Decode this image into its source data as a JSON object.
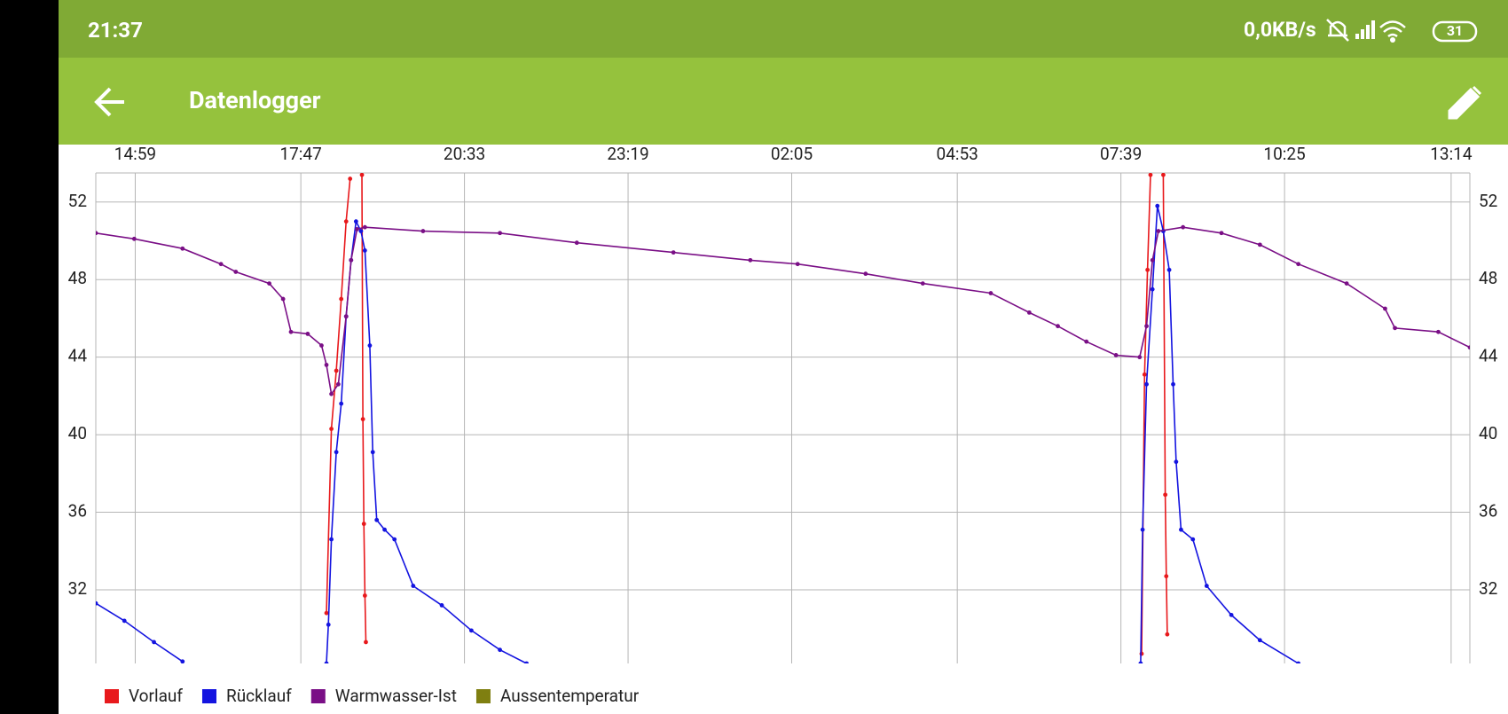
{
  "status_bar": {
    "time": "21:37",
    "network": "0,0KB/s",
    "battery": "31"
  },
  "app_bar": {
    "title": "Datenlogger"
  },
  "chart_data": {
    "type": "line",
    "xlim": [
      "14:19",
      "13:33"
    ],
    "xticks": [
      "14:59",
      "17:47",
      "20:33",
      "23:19",
      "02:05",
      "04:53",
      "07:39",
      "10:25",
      "13:14"
    ],
    "ylim": [
      28.2,
      53.5
    ],
    "yticks": [
      32,
      36,
      40,
      44,
      48,
      52
    ],
    "grid": true,
    "legend": "bottom-left",
    "series": [
      {
        "name": "Vorlauf",
        "color": "#e8191c",
        "x": [
          "18:13",
          "18:18",
          "18:23",
          "18:28",
          "18:33",
          "18:37",
          "18:45",
          "18:49",
          "18:50",
          "18:51",
          "18:52",
          "18:53",
          "12:00",
          "08:00",
          "08:03",
          "08:06",
          "08:09",
          "08:15",
          "08:22",
          "08:24",
          "08:25",
          "08:26"
        ],
        "values": [
          30.8,
          40.3,
          43.3,
          47.0,
          51.0,
          53.2,
          null,
          53.4,
          40.8,
          35.4,
          31.7,
          29.3,
          null,
          28.7,
          43.1,
          48.5,
          53.4,
          null,
          53.4,
          36.9,
          32.7,
          29.7
        ]
      },
      {
        "name": "Rücklauf",
        "color": "#1414e0",
        "x": [
          "14:19",
          "14:48",
          "15:18",
          "15:47",
          "16:00",
          "18:13",
          "18:15",
          "18:18",
          "18:23",
          "18:28",
          "18:33",
          "18:38",
          "18:43",
          "18:48",
          "18:52",
          "18:57",
          "19:00",
          "19:04",
          "19:12",
          "19:22",
          "19:41",
          "20:10",
          "20:40",
          "21:09",
          "21:36",
          "00:00",
          "07:59",
          "08:01",
          "08:05",
          "08:11",
          "08:16",
          "08:22",
          "08:28",
          "08:32",
          "08:35",
          "08:40",
          "08:52",
          "09:06",
          "09:31",
          "10:00",
          "10:39"
        ],
        "values": [
          31.3,
          30.4,
          29.3,
          28.3,
          null,
          28.2,
          30.2,
          34.6,
          39.1,
          41.6,
          46.1,
          49.0,
          51.0,
          50.5,
          49.5,
          44.6,
          39.1,
          35.6,
          35.1,
          34.6,
          32.2,
          31.2,
          29.9,
          28.9,
          28.2,
          null,
          28.2,
          35.1,
          42.6,
          47.5,
          51.8,
          50.5,
          48.5,
          42.6,
          38.6,
          35.1,
          34.6,
          32.2,
          30.7,
          29.4,
          28.2
        ]
      },
      {
        "name": "Warmwasser-Ist",
        "color": "#7a0f86",
        "x": [
          "14:19",
          "14:58",
          "15:47",
          "16:26",
          "16:41",
          "17:15",
          "17:29",
          "17:37",
          "17:54",
          "18:08",
          "18:13",
          "18:18",
          "18:25",
          "18:33",
          "18:38",
          "18:44",
          "18:52",
          "19:51",
          "21:09",
          "22:27",
          "00:05",
          "01:23",
          "02:11",
          "03:20",
          "04:18",
          "05:27",
          "06:06",
          "06:35",
          "07:04",
          "07:34",
          "07:58",
          "08:05",
          "08:11",
          "08:17",
          "08:42",
          "09:21",
          "10:00",
          "10:39",
          "11:28",
          "12:07",
          "12:17",
          "13:01",
          "13:33"
        ],
        "values": [
          50.4,
          50.1,
          49.6,
          48.8,
          48.4,
          47.8,
          47.0,
          45.3,
          45.2,
          44.6,
          43.6,
          42.1,
          42.6,
          46.1,
          49.0,
          50.6,
          50.7,
          50.5,
          50.4,
          49.9,
          49.4,
          49.0,
          48.8,
          48.3,
          47.8,
          47.3,
          46.3,
          45.6,
          44.8,
          44.1,
          44.0,
          45.6,
          49.0,
          50.5,
          50.7,
          50.4,
          49.8,
          48.8,
          47.8,
          46.5,
          45.5,
          45.3,
          44.5
        ]
      },
      {
        "name": "Aussentemperatur",
        "color": "#7f7f10",
        "x": [],
        "values": []
      }
    ]
  }
}
